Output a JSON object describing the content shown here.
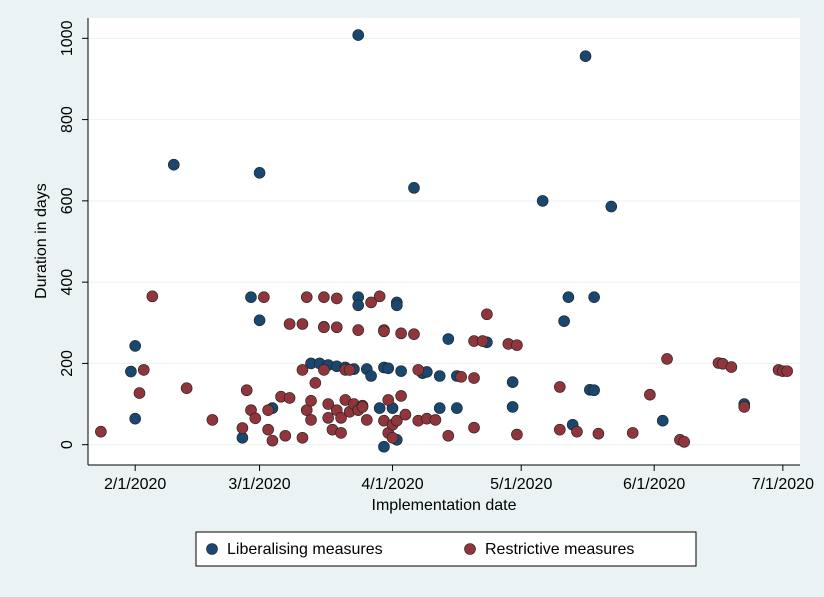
{
  "chart_data": {
    "type": "scatter",
    "x_label": "Implementation date",
    "y_label": "Duration in days",
    "xlim": [
      "2020-01-21",
      "2020-07-05"
    ],
    "xticks": [
      {
        "value": "2020-02-01",
        "label": "2/1/2020"
      },
      {
        "value": "2020-03-01",
        "label": "3/1/2020"
      },
      {
        "value": "2020-04-01",
        "label": "4/1/2020"
      },
      {
        "value": "2020-05-01",
        "label": "5/1/2020"
      },
      {
        "value": "2020-06-01",
        "label": "6/1/2020"
      },
      {
        "value": "2020-07-01",
        "label": "7/1/2020"
      }
    ],
    "ylim": [
      -50,
      1050
    ],
    "yticks": [
      0,
      200,
      400,
      600,
      800,
      1000
    ],
    "grid": true,
    "legend": "bottom",
    "series": [
      {
        "name": "Liberalising measures",
        "color": "#1a476f",
        "x": [
          "2020-01-31",
          "2020-02-01",
          "2020-02-01",
          "2020-02-10",
          "2020-02-28",
          "2020-03-01",
          "2020-03-01",
          "2020-02-26",
          "2020-03-04",
          "2020-03-16",
          "2020-03-13",
          "2020-03-15",
          "2020-03-17",
          "2020-03-19",
          "2020-03-21",
          "2020-03-23",
          "2020-03-24",
          "2020-03-24",
          "2020-03-24",
          "2020-03-26",
          "2020-03-27",
          "2020-03-29",
          "2020-03-30",
          "2020-03-30",
          "2020-03-31",
          "2020-04-01",
          "2020-04-02",
          "2020-04-02",
          "2020-04-02",
          "2020-04-03",
          "2020-04-06",
          "2020-04-08",
          "2020-04-09",
          "2020-04-12",
          "2020-04-12",
          "2020-04-14",
          "2020-04-16",
          "2020-04-16",
          "2020-04-23",
          "2020-04-29",
          "2020-04-29",
          "2020-05-06",
          "2020-05-11",
          "2020-05-12",
          "2020-05-13",
          "2020-05-16",
          "2020-05-17",
          "2020-05-18",
          "2020-05-18",
          "2020-05-22",
          "2020-06-03",
          "2020-06-22"
        ],
        "values": [
          180,
          243,
          64,
          689,
          363,
          306,
          669,
          17,
          90,
          290,
          200,
          200,
          196,
          193,
          190,
          186,
          1008,
          363,
          343,
          186,
          169,
          90,
          190,
          -5,
          188,
          90,
          12,
          350,
          343,
          181,
          632,
          176,
          179,
          169,
          90,
          260,
          169,
          90,
          252,
          154,
          93,
          600,
          304,
          363,
          49,
          956,
          135,
          134,
          363,
          586,
          59,
          100
        ]
      },
      {
        "name": "Restrictive measures",
        "color": "#90353b",
        "x": [
          "2020-01-24",
          "2020-02-03",
          "2020-02-02",
          "2020-02-05",
          "2020-02-13",
          "2020-02-19",
          "2020-02-26",
          "2020-02-27",
          "2020-02-28",
          "2020-02-29",
          "2020-03-02",
          "2020-03-03",
          "2020-03-03",
          "2020-03-04",
          "2020-03-06",
          "2020-03-07",
          "2020-03-08",
          "2020-03-08",
          "2020-03-11",
          "2020-03-11",
          "2020-03-11",
          "2020-03-12",
          "2020-03-12",
          "2020-03-13",
          "2020-03-13",
          "2020-03-14",
          "2020-03-16",
          "2020-03-16",
          "2020-03-16",
          "2020-03-17",
          "2020-03-17",
          "2020-03-18",
          "2020-03-19",
          "2020-03-19",
          "2020-03-19",
          "2020-03-20",
          "2020-03-20",
          "2020-03-21",
          "2020-03-21",
          "2020-03-22",
          "2020-03-22",
          "2020-03-23",
          "2020-03-24",
          "2020-03-24",
          "2020-03-25",
          "2020-03-25",
          "2020-03-26",
          "2020-03-27",
          "2020-03-29",
          "2020-03-30",
          "2020-03-30",
          "2020-03-30",
          "2020-03-31",
          "2020-03-31",
          "2020-04-01",
          "2020-04-01",
          "2020-04-02",
          "2020-04-03",
          "2020-04-03",
          "2020-04-04",
          "2020-04-06",
          "2020-04-07",
          "2020-04-07",
          "2020-04-09",
          "2020-04-11",
          "2020-04-14",
          "2020-04-17",
          "2020-04-20",
          "2020-04-20",
          "2020-04-20",
          "2020-04-22",
          "2020-04-23",
          "2020-04-28",
          "2020-04-30",
          "2020-04-30",
          "2020-05-10",
          "2020-05-10",
          "2020-05-14",
          "2020-05-19",
          "2020-05-27",
          "2020-05-31",
          "2020-06-04",
          "2020-06-07",
          "2020-06-08",
          "2020-06-16",
          "2020-06-17",
          "2020-06-19",
          "2020-06-22",
          "2020-06-30",
          "2020-07-01",
          "2020-07-02"
        ],
        "values": [
          32,
          184,
          127,
          365,
          139,
          61,
          41,
          134,
          85,
          65,
          363,
          85,
          37,
          10,
          118,
          22,
          115,
          297,
          297,
          184,
          17,
          85,
          363,
          108,
          61,
          152,
          363,
          289,
          184,
          100,
          66,
          37,
          289,
          85,
          360,
          29,
          66,
          184,
          110,
          81,
          184,
          100,
          85,
          282,
          96,
          93,
          61,
          350,
          365,
          282,
          279,
          59,
          29,
          110,
          17,
          49,
          59,
          120,
          274,
          74,
          272,
          184,
          59,
          64,
          61,
          22,
          167,
          42,
          164,
          255,
          255,
          321,
          248,
          245,
          25,
          142,
          37,
          32,
          27,
          29,
          123,
          211,
          12,
          7,
          201,
          199,
          191,
          93,
          184,
          181,
          181
        ]
      }
    ]
  }
}
